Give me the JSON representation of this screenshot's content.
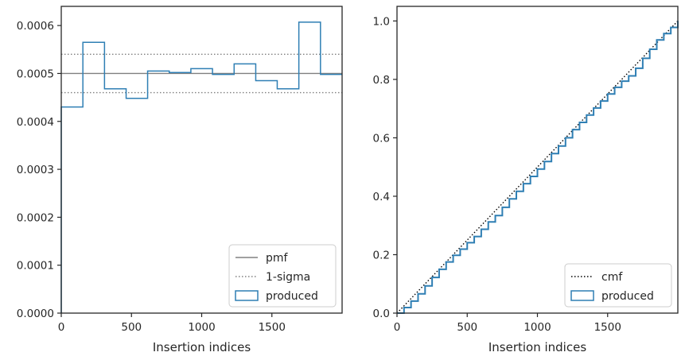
{
  "chart_data": [
    {
      "type": "histogram",
      "xlabel": "Insertion indices",
      "ylabel": "",
      "xlim": [
        0,
        2000
      ],
      "ylim": [
        0,
        0.00064
      ],
      "x_ticks": [
        0,
        500,
        1000,
        1500
      ],
      "x_tick_labels": [
        "0",
        "500",
        "1000",
        "1500"
      ],
      "y_ticks": [
        0,
        0.0001,
        0.0002,
        0.0003,
        0.0004,
        0.0005,
        0.0006
      ],
      "y_tick_labels": [
        "0.0000",
        "0.0001",
        "0.0002",
        "0.0003",
        "0.0004",
        "0.0005",
        "0.0006"
      ],
      "grid": false,
      "legend_position": "lower-right",
      "pmf": 0.0005,
      "sigma_band": [
        0.00046,
        0.00054
      ],
      "series": [
        {
          "name": "produced",
          "style": "step",
          "color": "#2f7fb4",
          "bin_edges": [
            0,
            154,
            308,
            462,
            615,
            769,
            923,
            1077,
            1231,
            1385,
            1538,
            1692,
            1846,
            2000
          ],
          "values": [
            0.00043,
            0.000565,
            0.000468,
            0.000448,
            0.000505,
            0.000502,
            0.00051,
            0.000498,
            0.00052,
            0.000485,
            0.000468,
            0.000607,
            0.000498
          ]
        }
      ],
      "legend": [
        {
          "label": "pmf",
          "style": "solid",
          "color": "#808080"
        },
        {
          "label": "1-sigma",
          "style": "dotted",
          "color": "#808080"
        },
        {
          "label": "produced",
          "style": "patch",
          "color": "#2f7fb4"
        }
      ]
    },
    {
      "type": "line",
      "xlabel": "Insertion indices",
      "ylabel": "",
      "xlim": [
        0,
        2000
      ],
      "ylim": [
        0,
        1.05
      ],
      "x_ticks": [
        0,
        500,
        1000,
        1500
      ],
      "x_tick_labels": [
        "0",
        "500",
        "1000",
        "1500"
      ],
      "y_ticks": [
        0,
        0.2,
        0.4,
        0.6,
        0.8,
        1.0
      ],
      "y_tick_labels": [
        "0.0",
        "0.2",
        "0.4",
        "0.6",
        "0.8",
        "1.0"
      ],
      "grid": false,
      "legend_position": "lower-right",
      "series": [
        {
          "name": "cmf",
          "style": "dotted",
          "color": "#000000",
          "x": [
            0,
            2000
          ],
          "y": [
            0,
            1.0
          ]
        },
        {
          "name": "produced",
          "style": "step",
          "color": "#2f7fb4",
          "x": [
            0,
            50,
            100,
            150,
            200,
            250,
            300,
            350,
            400,
            450,
            500,
            550,
            600,
            650,
            700,
            750,
            800,
            850,
            900,
            950,
            1000,
            1050,
            1100,
            1150,
            1200,
            1250,
            1300,
            1350,
            1400,
            1450,
            1500,
            1550,
            1600,
            1650,
            1700,
            1750,
            1800,
            1850,
            1900,
            1950,
            2000
          ],
          "y": [
            0,
            0.019,
            0.041,
            0.066,
            0.093,
            0.122,
            0.15,
            0.175,
            0.198,
            0.219,
            0.241,
            0.262,
            0.287,
            0.312,
            0.334,
            0.362,
            0.391,
            0.417,
            0.443,
            0.468,
            0.493,
            0.519,
            0.546,
            0.572,
            0.6,
            0.628,
            0.653,
            0.678,
            0.702,
            0.726,
            0.75,
            0.773,
            0.794,
            0.812,
            0.838,
            0.872,
            0.903,
            0.935,
            0.957,
            0.978,
            1.0
          ]
        }
      ],
      "legend": [
        {
          "label": "cmf",
          "style": "dotted",
          "color": "#000000"
        },
        {
          "label": "produced",
          "style": "patch",
          "color": "#2f7fb4"
        }
      ]
    }
  ]
}
